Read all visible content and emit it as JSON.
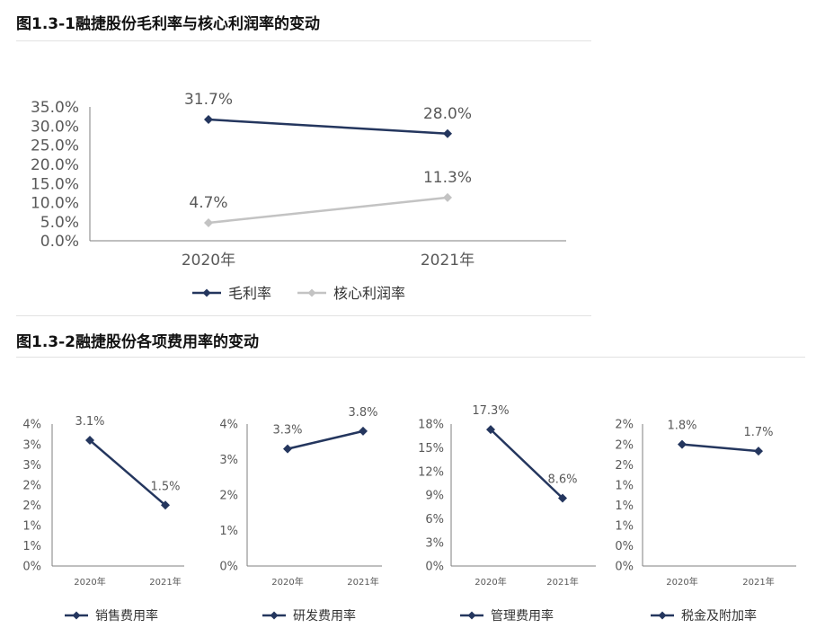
{
  "title1": "图1.3-1融捷股份毛利率与核心利润率的变动",
  "title2": "图1.3-2融捷股份各项费用率的变动",
  "colors": {
    "navy": "#24365e",
    "gray": "#c3c3c3",
    "axis": "#7f7f7f",
    "text": "#595959"
  },
  "chart_data": [
    {
      "type": "line",
      "categories": [
        "2020年",
        "2021年"
      ],
      "yticks": [
        "35.0%",
        "30.0%",
        "25.0%",
        "20.0%",
        "15.0%",
        "10.0%",
        "5.0%",
        "0.0%"
      ],
      "ylim": [
        0,
        35
      ],
      "series": [
        {
          "name": "毛利率",
          "values": [
            31.7,
            28.0
          ],
          "labels": [
            "31.7%",
            "28.0%"
          ],
          "color": "#24365e"
        },
        {
          "name": "核心利润率",
          "values": [
            4.7,
            11.3
          ],
          "labels": [
            "4.7%",
            "11.3%"
          ],
          "color": "#c3c3c3"
        }
      ],
      "legend": "bottom"
    },
    {
      "type": "line",
      "categories": [
        "2020年",
        "2021年"
      ],
      "yticks": [
        "4%",
        "3%",
        "3%",
        "2%",
        "2%",
        "1%",
        "1%",
        "0%"
      ],
      "ylim": [
        0,
        3.5
      ],
      "series": [
        {
          "name": "销售费用率",
          "values": [
            3.1,
            1.5
          ],
          "labels": [
            "3.1%",
            "1.5%"
          ],
          "color": "#24365e"
        }
      ],
      "legend": "bottom"
    },
    {
      "type": "line",
      "categories": [
        "2020年",
        "2021年"
      ],
      "yticks": [
        "4%",
        "3%",
        "2%",
        "1%",
        "0%"
      ],
      "ylim": [
        0,
        4
      ],
      "series": [
        {
          "name": "研发费用率",
          "values": [
            3.3,
            3.8
          ],
          "labels": [
            "3.3%",
            "3.8%"
          ],
          "color": "#24365e"
        }
      ],
      "legend": "bottom"
    },
    {
      "type": "line",
      "categories": [
        "2020年",
        "2021年"
      ],
      "yticks": [
        "18%",
        "15%",
        "12%",
        "9%",
        "6%",
        "3%",
        "0%"
      ],
      "ylim": [
        0,
        18
      ],
      "series": [
        {
          "name": "管理费用率",
          "values": [
            17.3,
            8.6
          ],
          "labels": [
            "17.3%",
            "8.6%"
          ],
          "color": "#24365e"
        }
      ],
      "legend": "bottom"
    },
    {
      "type": "line",
      "categories": [
        "2020年",
        "2021年"
      ],
      "yticks": [
        "2%",
        "2%",
        "2%",
        "1%",
        "1%",
        "1%",
        "0%",
        "0%"
      ],
      "ylim": [
        0,
        2.1
      ],
      "series": [
        {
          "name": "税金及附加率",
          "values": [
            1.8,
            1.7
          ],
          "labels": [
            "1.8%",
            "1.7%"
          ],
          "color": "#24365e"
        }
      ],
      "legend": "bottom"
    }
  ]
}
